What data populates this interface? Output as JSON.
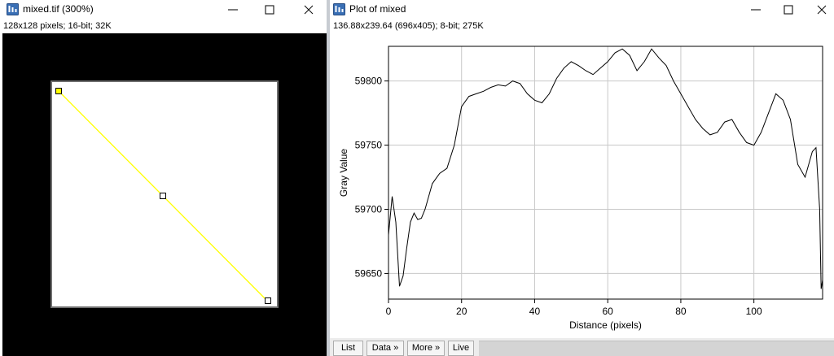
{
  "image_window": {
    "title": "mixed.tif (300%)",
    "info": "128x128 pixels; 16-bit; 32K",
    "app_icon": "imagej-window-icon",
    "controls": [
      "minimize-icon",
      "maximize-icon",
      "close-icon"
    ]
  },
  "plot_window": {
    "title": "Plot of mixed",
    "info": "136.88x239.64  (696x405); 8-bit; 275K",
    "app_icon": "imagej-window-icon",
    "controls": [
      "minimize-icon",
      "maximize-icon",
      "close-icon"
    ],
    "buttons": [
      "List",
      "Data »",
      "More »",
      "Live"
    ]
  },
  "chart_data": {
    "type": "line",
    "title": "",
    "xlabel": "Distance (pixels)",
    "ylabel": "Gray Value",
    "xlim": [
      0,
      118.8
    ],
    "ylim": [
      59630,
      59827
    ],
    "xticks": [
      0,
      20,
      40,
      60,
      80,
      100
    ],
    "yticks": [
      59650,
      59700,
      59750,
      59800
    ],
    "grid": true,
    "series": [
      {
        "color": "#000000",
        "x": [
          0,
          1,
          2,
          3,
          4,
          5,
          6,
          7,
          8,
          9,
          10,
          12,
          14,
          16,
          18,
          20,
          22,
          24,
          26,
          28,
          30,
          32,
          34,
          36,
          38,
          40,
          42,
          44,
          46,
          48,
          50,
          52,
          54,
          56,
          58,
          60,
          62,
          64,
          66,
          68,
          70,
          72,
          74,
          76,
          78,
          80,
          82,
          84,
          86,
          88,
          90,
          92,
          94,
          96,
          98,
          100,
          102,
          104,
          106,
          108,
          110,
          112,
          114,
          116,
          117,
          118,
          118.4,
          118.8
        ],
        "y": [
          59680,
          59710,
          59690,
          59640,
          59648,
          59670,
          59690,
          59697,
          59692,
          59693,
          59700,
          59720,
          59728,
          59732,
          59750,
          59780,
          59788,
          59790,
          59792,
          59795,
          59797,
          59796,
          59800,
          59798,
          59790,
          59785,
          59783,
          59790,
          59802,
          59810,
          59815,
          59812,
          59808,
          59805,
          59810,
          59815,
          59822,
          59825,
          59820,
          59808,
          59815,
          59825,
          59818,
          59812,
          59800,
          59790,
          59780,
          59770,
          59763,
          59758,
          59760,
          59768,
          59770,
          59760,
          59752,
          59750,
          59760,
          59775,
          59790,
          59785,
          59770,
          59735,
          59725,
          59745,
          59748,
          59700,
          59638,
          59645
        ]
      }
    ]
  },
  "roi": {
    "color": "#ffff00",
    "handles": [
      "start",
      "middle",
      "end"
    ]
  }
}
